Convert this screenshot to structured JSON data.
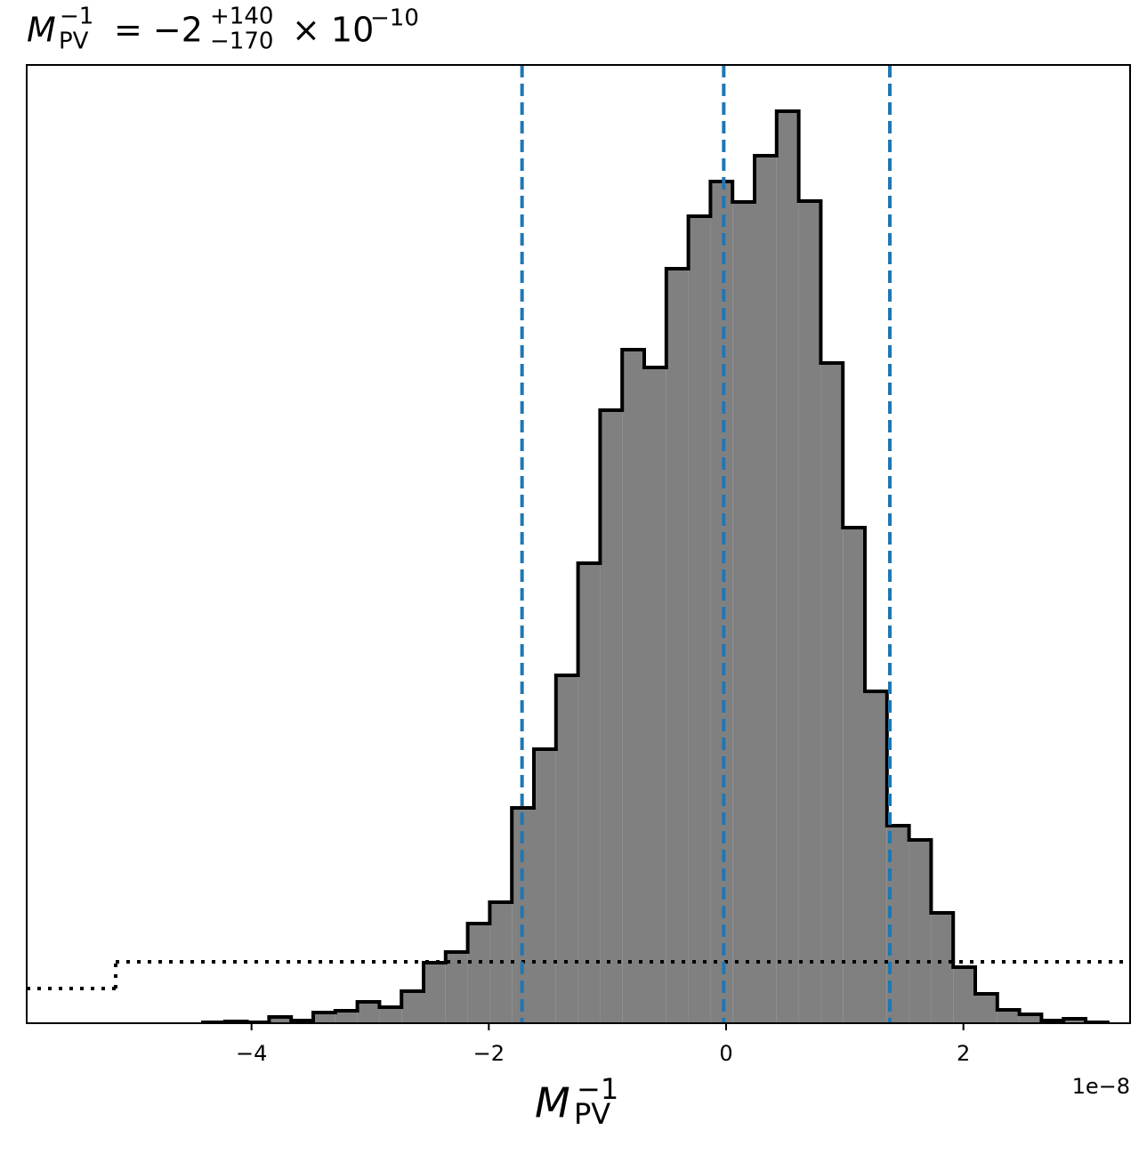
{
  "chart_data": {
    "type": "histogram",
    "title": {
      "symbol": "M",
      "symbol_sub": "PV",
      "symbol_sup": "−1",
      "median": "= −2",
      "upper": "+140",
      "lower": "−170",
      "scale": "× 10",
      "scale_exp": "−10"
    },
    "xlabel": {
      "symbol": "M",
      "sub": "PV",
      "sup": "−1"
    },
    "x_offset_label": "1e−8",
    "bins": [
      -4.41,
      -4.224,
      -4.038,
      -3.852,
      -3.666,
      -3.48,
      -3.294,
      -3.108,
      -2.922,
      -2.736,
      -2.55,
      -2.364,
      -2.178,
      -1.992,
      -1.806,
      -1.62,
      -1.434,
      -1.248,
      -1.062,
      -0.876,
      -0.69,
      -0.504,
      -0.318,
      -0.132,
      0.054,
      0.24,
      0.426,
      0.612,
      0.798,
      0.984,
      1.17,
      1.356,
      1.542,
      1.728,
      1.914,
      2.1,
      2.286,
      2.472,
      2.658,
      2.844,
      3.03,
      3.216
    ],
    "values": [
      1,
      2,
      1,
      7,
      3,
      12,
      14,
      24,
      18,
      36,
      68,
      80,
      112,
      136,
      242,
      308,
      391,
      517,
      689,
      757,
      737,
      848,
      907,
      946,
      923,
      975,
      1025,
      924,
      742,
      557,
      373,
      222,
      206,
      124,
      63,
      33,
      15,
      10,
      3,
      5,
      1
    ],
    "color": "#808080",
    "edge_color": "#000000",
    "quantile_lines": {
      "x": [
        -1.72,
        -0.02,
        1.38
      ],
      "color": "#1f77b4"
    },
    "prior": {
      "edges": [
        -5.895,
        -5.145,
        3.405
      ],
      "values": [
        39,
        69
      ],
      "color": "#000000"
    },
    "xlim": [
      -5.895,
      3.405
    ],
    "ylim": [
      0,
      1077
    ],
    "xticks": [
      {
        "value": -4,
        "label": "−4"
      },
      {
        "value": -2,
        "label": "−2"
      },
      0,
      2
    ],
    "grid": false
  }
}
